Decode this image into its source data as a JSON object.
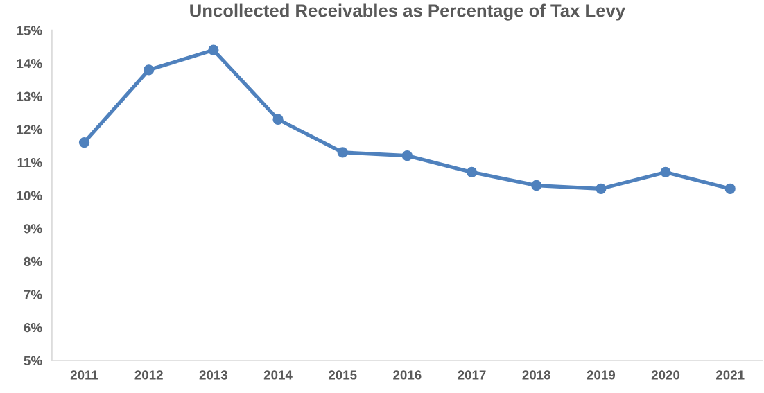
{
  "chart_data": {
    "type": "line",
    "title": "Uncollected Receivables as Percentage of Tax Levy",
    "categories": [
      "2011",
      "2012",
      "2013",
      "2014",
      "2015",
      "2016",
      "2017",
      "2018",
      "2019",
      "2020",
      "2021"
    ],
    "series": [
      {
        "color": "#4f81bd",
        "values": [
          11.6,
          13.8,
          14.4,
          12.3,
          11.3,
          11.2,
          10.7,
          10.3,
          10.2,
          10.7,
          10.2
        ]
      }
    ],
    "ylim": [
      5,
      15
    ],
    "yticks": [
      {
        "value": 5,
        "label": "5%"
      },
      {
        "value": 6,
        "label": "6%"
      },
      {
        "value": 7,
        "label": "7%"
      },
      {
        "value": 8,
        "label": "8%"
      },
      {
        "value": 9,
        "label": "9%"
      },
      {
        "value": 10,
        "label": "10%"
      },
      {
        "value": 11,
        "label": "11%"
      },
      {
        "value": 12,
        "label": "12%"
      },
      {
        "value": 13,
        "label": "13%"
      },
      {
        "value": 14,
        "label": "14%"
      },
      {
        "value": 15,
        "label": "15%"
      }
    ],
    "marker": "circle",
    "line_style": "solid",
    "grid": false
  }
}
